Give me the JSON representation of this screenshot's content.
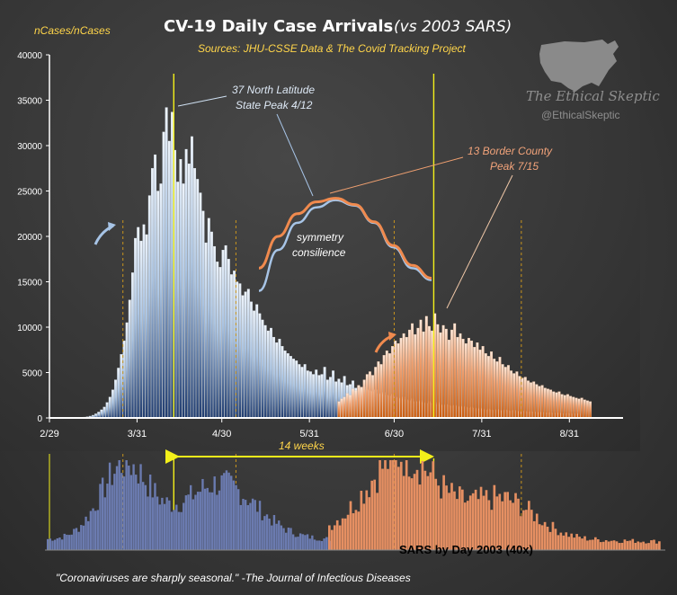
{
  "header": {
    "title": "CV-19  Daily  Case  Arrivals",
    "title_suffix": "(vs 2003 SARS)",
    "sources": "Sources: JHU-CSSE Data & The Covid Tracking Project",
    "y_axis_label_part1": "nCases/",
    "y_axis_label_part2": "nCases"
  },
  "brand": {
    "name": "The Ethical Skeptic",
    "handle": "@EthicalSkeptic",
    "logo_icon": "usa-map-icon"
  },
  "annotations": {
    "blue_peak_line1": "37 North Latitude",
    "blue_peak_line2": "State Peak 4/12",
    "orange_peak_line1": "13 Border County",
    "orange_peak_line2": "Peak 7/15",
    "symmetry_line1": "symmetry",
    "symmetry_line2": "consilience",
    "weeks": "14 weeks"
  },
  "sars": {
    "label": "SARS by Day 2003 (40x)"
  },
  "footer": {
    "quote": "\"Coronaviruses are sharply seasonal.\"  -The Journal of Infectious Diseases"
  },
  "colors": {
    "blue_series_top": "#dde8f5",
    "blue_series_bottom": "#1f3b6e",
    "orange_series_top": "#fbe4d6",
    "orange_series_bottom": "#d2620f",
    "marker_yellow": "#f3f01a",
    "dashed_marker": "#c8941e",
    "sars_blue": "#6b7bb0",
    "sars_orange": "#e58f62"
  },
  "chart_data": {
    "type": "bar",
    "title": "CV-19 Daily Case Arrivals (vs 2003 SARS)",
    "ylabel": "nCases/nCases",
    "ylim": [
      0,
      40000
    ],
    "yticks": [
      0,
      5000,
      10000,
      15000,
      20000,
      25000,
      30000,
      35000,
      40000
    ],
    "x_tick_labels": [
      "2/29",
      "3/31",
      "4/30",
      "5/31",
      "6/30",
      "7/31",
      "8/31"
    ],
    "x_tick_days": [
      0,
      31,
      61,
      92,
      122,
      153,
      184
    ],
    "x_domain_days": [
      0,
      203
    ],
    "x_unit": "days since 2/29",
    "vertical_markers_solid_days": [
      44,
      136
    ],
    "vertical_markers_dashed_days": [
      26,
      66,
      122,
      167
    ],
    "series": [
      {
        "name": "37 North Latitude States",
        "start_day": 10,
        "values": [
          40,
          60,
          90,
          130,
          200,
          300,
          450,
          650,
          900,
          1200,
          1700,
          2300,
          3100,
          4200,
          5500,
          7000,
          8500,
          10500,
          13000,
          16000,
          19800,
          21000,
          19500,
          21300,
          20200,
          24500,
          27500,
          29000,
          25000,
          25800,
          31500,
          34200,
          30500,
          33700,
          29500,
          26000,
          28500,
          25800,
          29600,
          28000,
          31000,
          27500,
          26300,
          24800,
          22800,
          19300,
          22000,
          20500,
          18900,
          17200,
          16600,
          18500,
          19000,
          17500,
          15800,
          16200,
          15000,
          14800,
          13500,
          13900,
          14200,
          12800,
          11800,
          12500,
          11500,
          10800,
          10200,
          9600,
          9900,
          8900,
          8300,
          8700,
          7900,
          7400,
          7100,
          6800,
          6500,
          6300,
          5900,
          5600,
          5900,
          5200,
          5100,
          4800,
          5300,
          4700,
          4800,
          5600,
          4200,
          4500,
          5200,
          4000,
          4300,
          3900,
          4600,
          3600,
          3700,
          4100,
          3300,
          3500,
          3200,
          3400,
          3100,
          3000,
          2900,
          3100,
          2700,
          2600,
          2800,
          2500,
          2400,
          2600,
          2300,
          2200,
          2100,
          2300,
          2000,
          1900,
          2100,
          1800,
          1800,
          1900,
          1700,
          1600,
          1800,
          1600,
          1500,
          1700,
          1500,
          1400,
          1500,
          1400,
          1300,
          1400,
          1300,
          1200,
          1300,
          1200,
          1100,
          1200,
          1100,
          1000,
          1100,
          1000,
          900,
          1000,
          900,
          850,
          950,
          850,
          800,
          900,
          800,
          750,
          850,
          750,
          700,
          780,
          720,
          650,
          700,
          680,
          620,
          600,
          650,
          580,
          560,
          600,
          550,
          520,
          560,
          500,
          480,
          520,
          470,
          450,
          480,
          450
        ]
      },
      {
        "name": "13 Border Counties",
        "start_day": 102,
        "values": [
          1800,
          2100,
          2300,
          2700,
          2500,
          3200,
          3000,
          3600,
          3400,
          4200,
          4800,
          5100,
          4700,
          5600,
          6200,
          5900,
          6900,
          7400,
          7100,
          7900,
          8500,
          8200,
          8800,
          9300,
          8900,
          9700,
          10400,
          9200,
          9900,
          10800,
          9500,
          11200,
          10100,
          9600,
          11500,
          10300,
          9400,
          10200,
          9800,
          8600,
          9700,
          10400,
          8900,
          9300,
          8700,
          8200,
          8800,
          8500,
          7800,
          8300,
          7500,
          7900,
          7100,
          6800,
          7300,
          6500,
          6200,
          6700,
          5900,
          5600,
          5800,
          5200,
          4900,
          5100,
          4600,
          4400,
          4500,
          4100,
          3900,
          4000,
          3700,
          3500,
          3600,
          3300,
          3200,
          3100,
          2900,
          2800,
          2900,
          2600,
          2500,
          2600,
          2400,
          2300,
          2200,
          2100,
          2200,
          2000,
          1900,
          1800
        ]
      }
    ],
    "overlay_curves": {
      "type": "line",
      "description": "symmetry consilience",
      "blue_curve_y": [
        14000,
        18500,
        21500,
        23200,
        24000,
        23400,
        21500,
        18800,
        16500,
        15200
      ],
      "orange_curve_y": [
        16500,
        20000,
        22500,
        23800,
        24200,
        23500,
        21600,
        19000,
        16800,
        15400
      ]
    },
    "sars_strip": {
      "type": "bar",
      "label": "SARS by Day 2003 (40x)",
      "blue_count": 120,
      "orange_count": 125
    }
  }
}
